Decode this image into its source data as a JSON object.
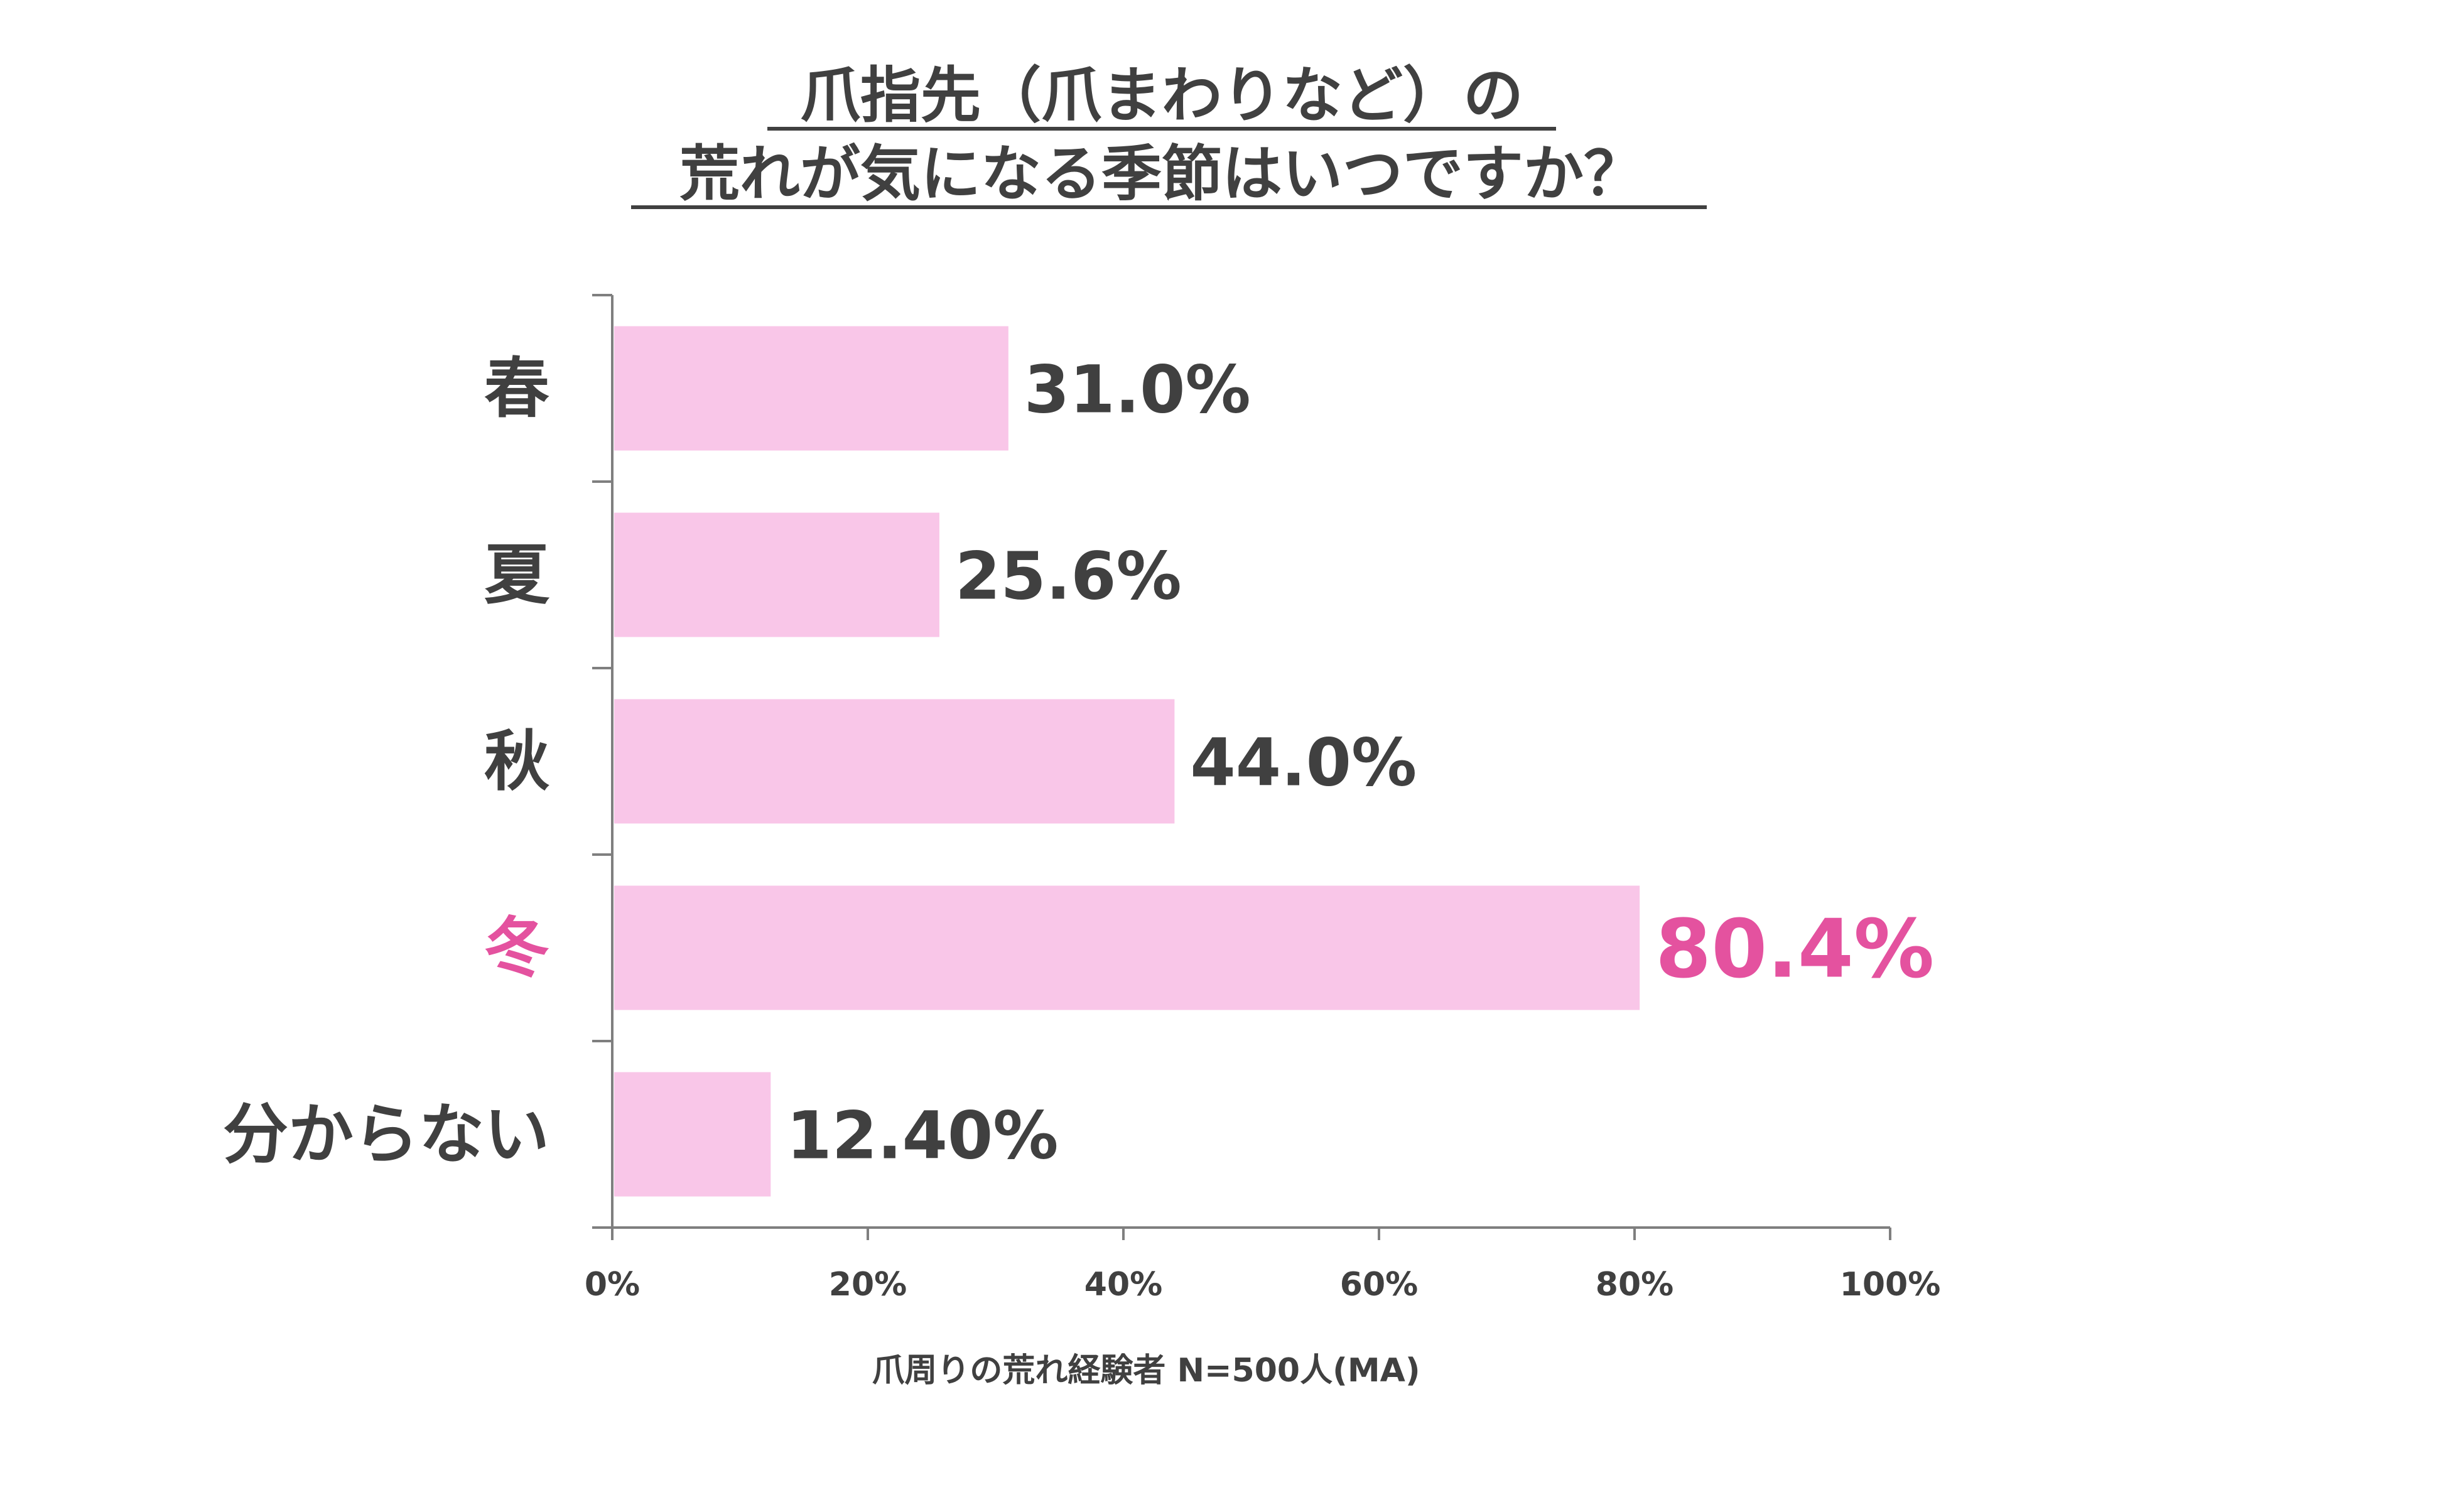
{
  "colors": {
    "bar": "#f9c6e8",
    "text": "#404040",
    "highlight": "#e4529f",
    "axis": "#7f7f7f"
  },
  "chart_data": {
    "type": "bar",
    "orientation": "horizontal",
    "title_lines": [
      "爪指先（爪まわりなど）の",
      "荒れが気になる季節はいつですか？"
    ],
    "categories": [
      "春",
      "夏",
      "秋",
      "冬",
      "分からない"
    ],
    "values": [
      31.0,
      25.6,
      44.0,
      80.4,
      12.4
    ],
    "value_labels": [
      "31.0%",
      "25.6%",
      "44.0%",
      "80.4%",
      "12.40%"
    ],
    "highlight_category": "冬",
    "xlim": [
      0,
      100
    ],
    "x_ticks": [
      "0%",
      "20%",
      "40%",
      "60%",
      "80%",
      "100%"
    ],
    "grid": false,
    "legend": "none",
    "note": "爪周りの荒れ経験者 N=500人(MA)"
  }
}
